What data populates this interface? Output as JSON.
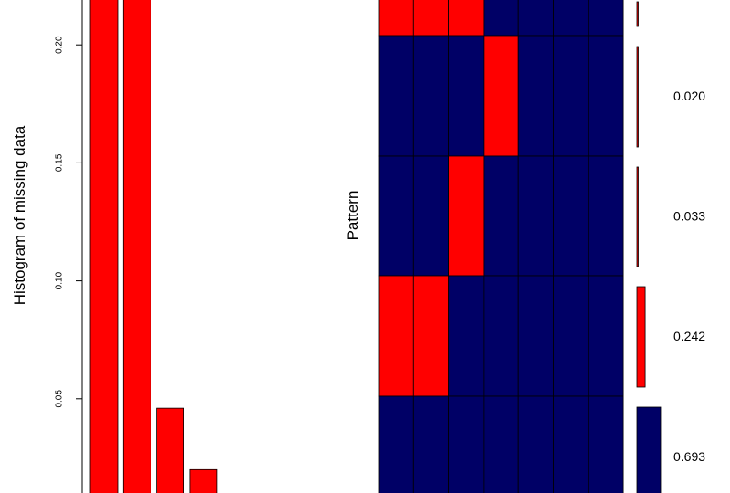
{
  "colors": {
    "missing": "#ff0000",
    "observed": "#000066",
    "bar_stroke": "#000000",
    "background": "#ffffff"
  },
  "chart_data": [
    {
      "type": "bar",
      "ylabel": "Histogram of missing data",
      "yticks": [
        "0.05",
        "0.10",
        "0.15",
        "0.20"
      ],
      "ylim": [
        0,
        0.22
      ],
      "values": [
        0.245,
        0.245,
        0.046,
        0.02
      ]
    },
    {
      "type": "heatmap",
      "ylabel": "Pattern",
      "columns": 7,
      "rows": [
        {
          "cells": [
            1,
            1,
            1,
            0,
            0,
            0,
            0
          ],
          "proportion": null,
          "proportion_label": ""
        },
        {
          "cells": [
            0,
            0,
            0,
            1,
            0,
            0,
            0
          ],
          "proportion": 0.02,
          "proportion_label": "0.020"
        },
        {
          "cells": [
            0,
            0,
            1,
            0,
            0,
            0,
            0
          ],
          "proportion": 0.033,
          "proportion_label": "0.033"
        },
        {
          "cells": [
            1,
            1,
            0,
            0,
            0,
            0,
            0
          ],
          "proportion": 0.242,
          "proportion_label": "0.242"
        },
        {
          "cells": [
            0,
            0,
            0,
            0,
            0,
            0,
            0
          ],
          "proportion": 0.693,
          "proportion_label": "0.693"
        }
      ]
    }
  ]
}
